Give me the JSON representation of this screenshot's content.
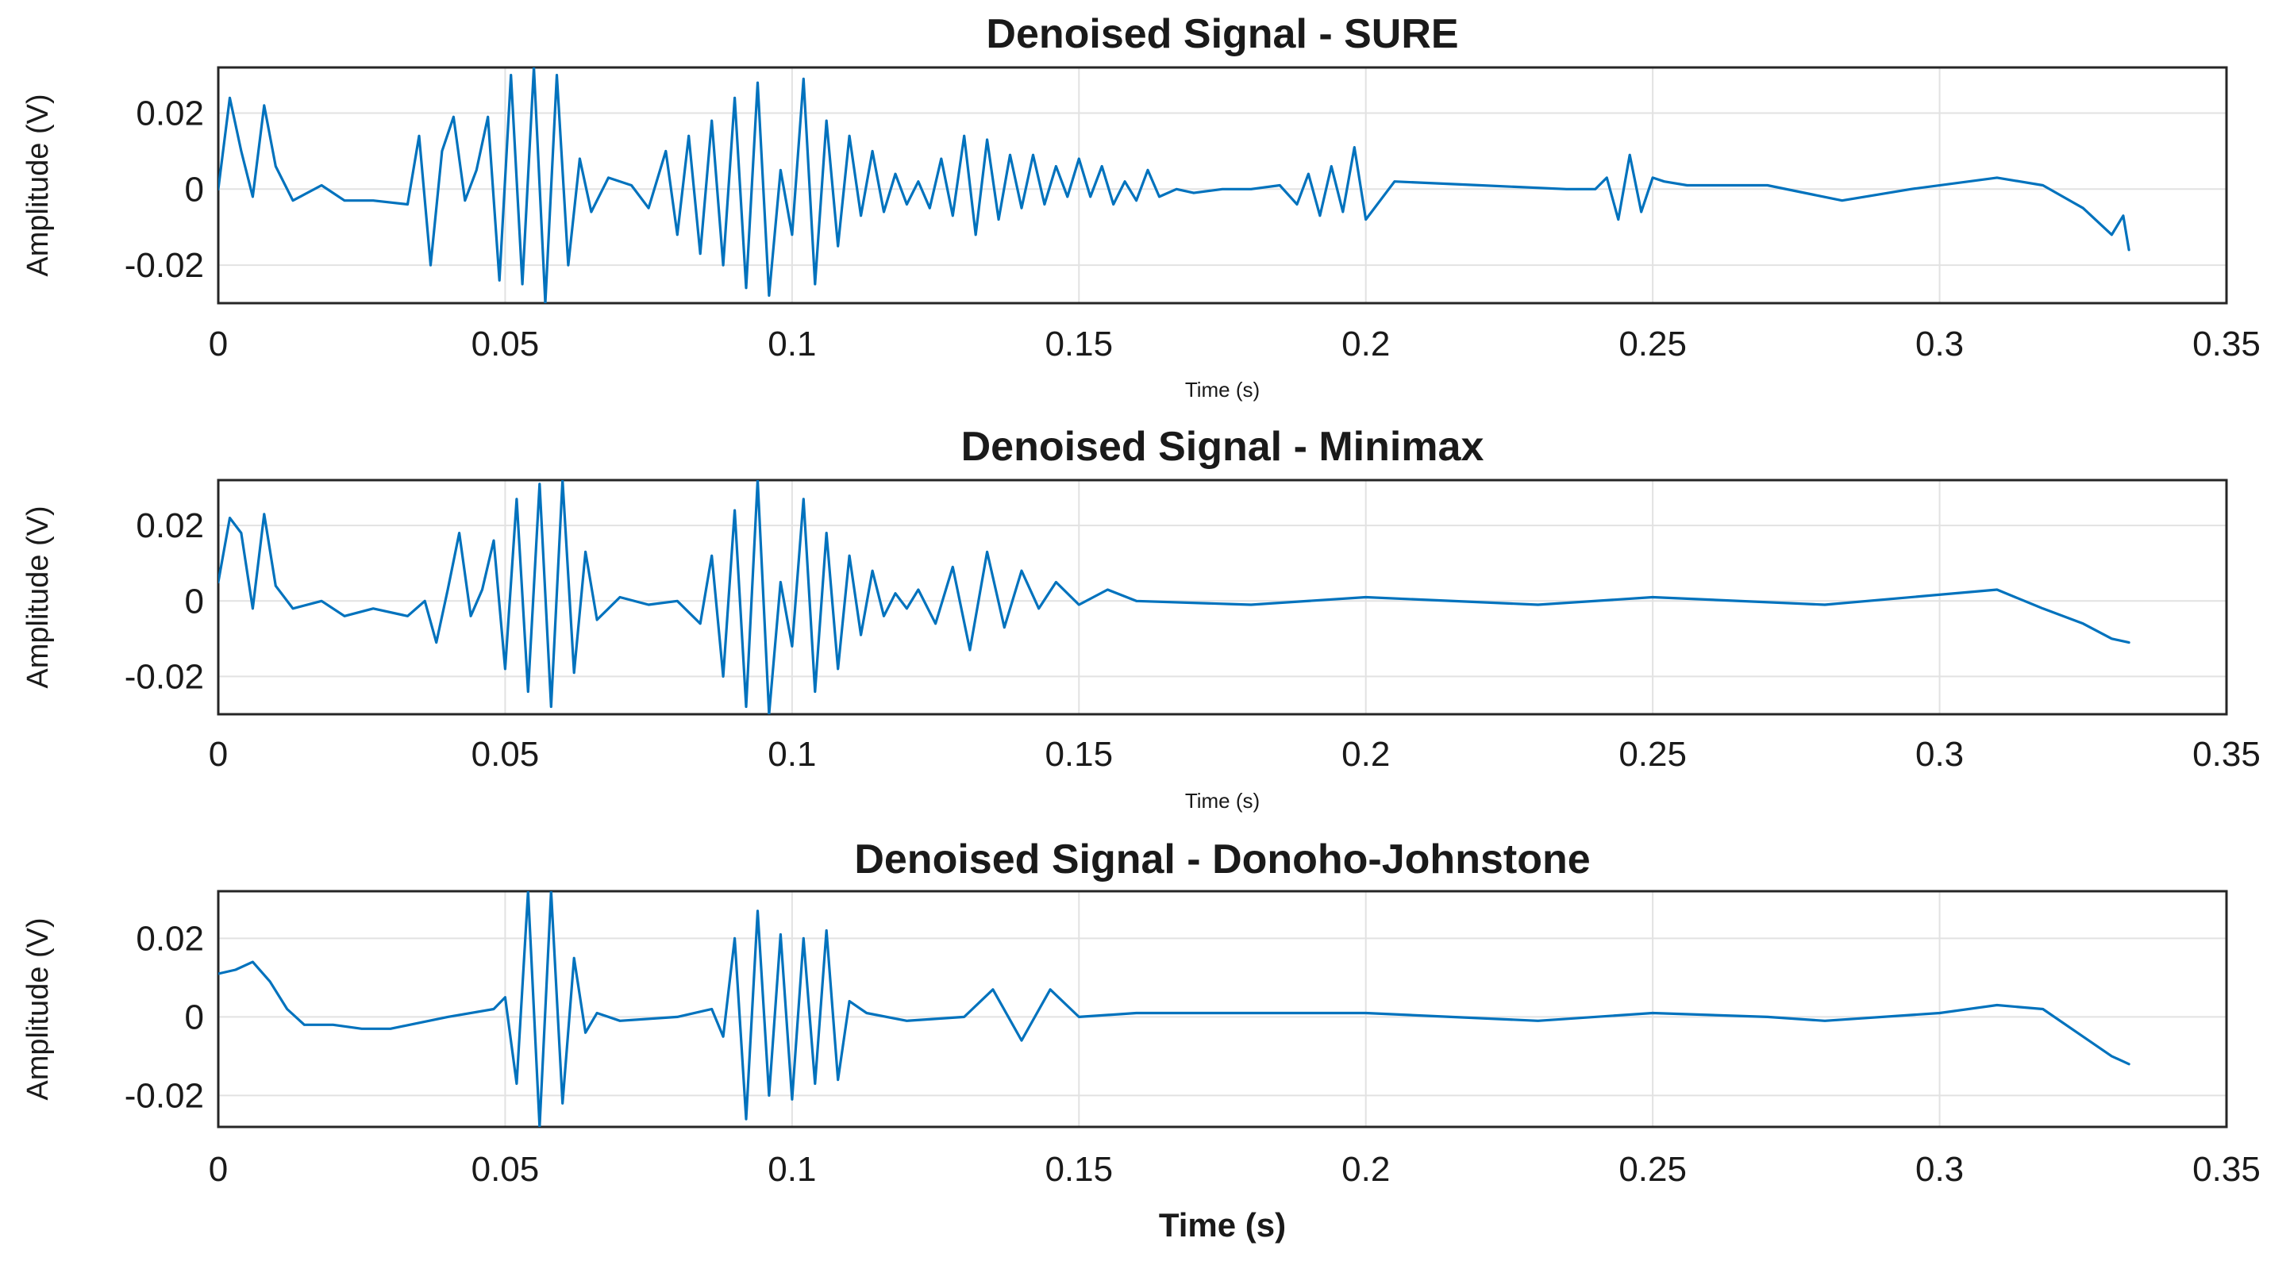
{
  "chart_data": [
    {
      "type": "line",
      "title": "Denoised Signal - SURE",
      "xlabel": "Time (s)",
      "ylabel": "Amplitude (V)",
      "xlim": [
        0,
        0.35
      ],
      "ylim": [
        -0.03,
        0.032
      ],
      "xticks": [
        "0",
        "0.05",
        "0.1",
        "0.15",
        "0.2",
        "0.25",
        "0.3",
        "0.35"
      ],
      "yticks": [
        "0.02",
        "0",
        "-0.02"
      ],
      "grid": true,
      "color": "#0072BD",
      "series": [
        {
          "x": [
            0,
            0.002,
            0.004,
            0.006,
            0.008,
            0.01,
            0.013,
            0.018,
            0.022,
            0.027,
            0.033,
            0.035,
            0.037,
            0.039,
            0.041,
            0.043,
            0.045,
            0.047,
            0.049,
            0.051,
            0.053,
            0.055,
            0.057,
            0.059,
            0.061,
            0.063,
            0.065,
            0.068,
            0.072,
            0.075,
            0.078,
            0.08,
            0.082,
            0.084,
            0.086,
            0.088,
            0.09,
            0.092,
            0.094,
            0.096,
            0.098,
            0.1,
            0.102,
            0.104,
            0.106,
            0.108,
            0.11,
            0.112,
            0.114,
            0.116,
            0.118,
            0.12,
            0.122,
            0.124,
            0.126,
            0.128,
            0.13,
            0.132,
            0.134,
            0.136,
            0.138,
            0.14,
            0.142,
            0.144,
            0.146,
            0.148,
            0.15,
            0.152,
            0.154,
            0.156,
            0.158,
            0.16,
            0.162,
            0.164,
            0.167,
            0.17,
            0.175,
            0.18,
            0.185,
            0.188,
            0.19,
            0.192,
            0.194,
            0.196,
            0.198,
            0.2,
            0.205,
            0.22,
            0.235,
            0.24,
            0.242,
            0.244,
            0.246,
            0.248,
            0.25,
            0.252,
            0.256,
            0.27,
            0.283,
            0.295,
            0.31,
            0.318,
            0.325,
            0.33,
            0.332,
            0.333
          ],
          "y": [
            0.0,
            0.024,
            0.01,
            -0.002,
            0.022,
            0.006,
            -0.003,
            0.001,
            -0.003,
            -0.003,
            -0.004,
            0.014,
            -0.02,
            0.01,
            0.019,
            -0.003,
            0.005,
            0.019,
            -0.024,
            0.03,
            -0.025,
            0.032,
            -0.03,
            0.03,
            -0.02,
            0.008,
            -0.006,
            0.003,
            0.001,
            -0.005,
            0.01,
            -0.012,
            0.014,
            -0.017,
            0.018,
            -0.02,
            0.024,
            -0.026,
            0.028,
            -0.028,
            0.005,
            -0.012,
            0.029,
            -0.025,
            0.018,
            -0.015,
            0.014,
            -0.007,
            0.01,
            -0.006,
            0.004,
            -0.004,
            0.002,
            -0.005,
            0.008,
            -0.007,
            0.014,
            -0.012,
            0.013,
            -0.008,
            0.009,
            -0.005,
            0.009,
            -0.004,
            0.006,
            -0.002,
            0.008,
            -0.002,
            0.006,
            -0.004,
            0.002,
            -0.003,
            0.005,
            -0.002,
            0.0,
            -0.001,
            0.0,
            0.0,
            0.001,
            -0.004,
            0.004,
            -0.007,
            0.006,
            -0.006,
            0.011,
            -0.008,
            0.002,
            0.001,
            0.0,
            0.0,
            0.003,
            -0.008,
            0.009,
            -0.006,
            0.003,
            0.002,
            0.001,
            0.001,
            -0.003,
            0.0,
            0.003,
            0.001,
            -0.005,
            -0.012,
            -0.007,
            -0.016
          ]
        }
      ]
    },
    {
      "type": "line",
      "title": "Denoised Signal - Minimax",
      "xlabel": "Time (s)",
      "ylabel": "Amplitude (V)",
      "xlim": [
        0,
        0.35
      ],
      "ylim": [
        -0.03,
        0.032
      ],
      "xticks": [
        "0",
        "0.05",
        "0.1",
        "0.15",
        "0.2",
        "0.25",
        "0.3",
        "0.35"
      ],
      "yticks": [
        "0.02",
        "0",
        "-0.02"
      ],
      "grid": true,
      "color": "#0072BD",
      "series": [
        {
          "x": [
            0,
            0.002,
            0.004,
            0.006,
            0.008,
            0.01,
            0.013,
            0.018,
            0.022,
            0.027,
            0.033,
            0.036,
            0.038,
            0.04,
            0.042,
            0.044,
            0.046,
            0.048,
            0.05,
            0.052,
            0.054,
            0.056,
            0.058,
            0.06,
            0.062,
            0.064,
            0.066,
            0.07,
            0.075,
            0.08,
            0.084,
            0.086,
            0.088,
            0.09,
            0.092,
            0.094,
            0.096,
            0.098,
            0.1,
            0.102,
            0.104,
            0.106,
            0.108,
            0.11,
            0.112,
            0.114,
            0.116,
            0.118,
            0.12,
            0.122,
            0.125,
            0.128,
            0.131,
            0.134,
            0.137,
            0.14,
            0.143,
            0.146,
            0.15,
            0.155,
            0.16,
            0.18,
            0.2,
            0.23,
            0.25,
            0.28,
            0.31,
            0.318,
            0.325,
            0.33,
            0.333
          ],
          "y": [
            0.005,
            0.022,
            0.018,
            -0.002,
            0.023,
            0.004,
            -0.002,
            0.0,
            -0.004,
            -0.002,
            -0.004,
            0.0,
            -0.011,
            0.003,
            0.018,
            -0.004,
            0.003,
            0.016,
            -0.018,
            0.027,
            -0.024,
            0.031,
            -0.028,
            0.032,
            -0.019,
            0.013,
            -0.005,
            0.001,
            -0.001,
            0.0,
            -0.006,
            0.012,
            -0.02,
            0.024,
            -0.028,
            0.032,
            -0.03,
            0.005,
            -0.012,
            0.027,
            -0.024,
            0.018,
            -0.018,
            0.012,
            -0.009,
            0.008,
            -0.004,
            0.002,
            -0.002,
            0.003,
            -0.006,
            0.009,
            -0.013,
            0.013,
            -0.007,
            0.008,
            -0.002,
            0.005,
            -0.001,
            0.003,
            0.0,
            -0.001,
            0.001,
            -0.001,
            0.001,
            -0.001,
            0.003,
            -0.002,
            -0.006,
            -0.01,
            -0.011
          ]
        }
      ]
    },
    {
      "type": "line",
      "title": "Denoised Signal - Donoho-Johnstone",
      "xlabel": "Time (s)",
      "ylabel": "Amplitude (V)",
      "xlim": [
        0,
        0.35
      ],
      "ylim": [
        -0.028,
        0.032
      ],
      "xticks": [
        "0",
        "0.05",
        "0.1",
        "0.15",
        "0.2",
        "0.25",
        "0.3",
        "0.35"
      ],
      "yticks": [
        "0.02",
        "0",
        "-0.02"
      ],
      "grid": true,
      "color": "#0072BD",
      "series": [
        {
          "x": [
            0,
            0.003,
            0.006,
            0.009,
            0.012,
            0.015,
            0.02,
            0.025,
            0.03,
            0.04,
            0.048,
            0.05,
            0.052,
            0.054,
            0.056,
            0.058,
            0.06,
            0.062,
            0.064,
            0.066,
            0.07,
            0.08,
            0.086,
            0.088,
            0.09,
            0.092,
            0.094,
            0.096,
            0.098,
            0.1,
            0.102,
            0.104,
            0.106,
            0.108,
            0.11,
            0.113,
            0.12,
            0.13,
            0.135,
            0.14,
            0.145,
            0.15,
            0.16,
            0.2,
            0.23,
            0.25,
            0.27,
            0.28,
            0.3,
            0.31,
            0.318,
            0.325,
            0.33,
            0.333
          ],
          "y": [
            0.011,
            0.012,
            0.014,
            0.009,
            0.002,
            -0.002,
            -0.002,
            -0.003,
            -0.003,
            0.0,
            0.002,
            0.005,
            -0.017,
            0.032,
            -0.028,
            0.032,
            -0.022,
            0.015,
            -0.004,
            0.001,
            -0.001,
            0.0,
            0.002,
            -0.005,
            0.02,
            -0.026,
            0.027,
            -0.02,
            0.021,
            -0.021,
            0.02,
            -0.017,
            0.022,
            -0.016,
            0.004,
            0.001,
            -0.001,
            0.0,
            0.007,
            -0.006,
            0.007,
            0.0,
            0.001,
            0.001,
            -0.001,
            0.001,
            0.0,
            -0.001,
            0.001,
            0.003,
            0.002,
            -0.005,
            -0.01,
            -0.012
          ]
        }
      ]
    }
  ]
}
